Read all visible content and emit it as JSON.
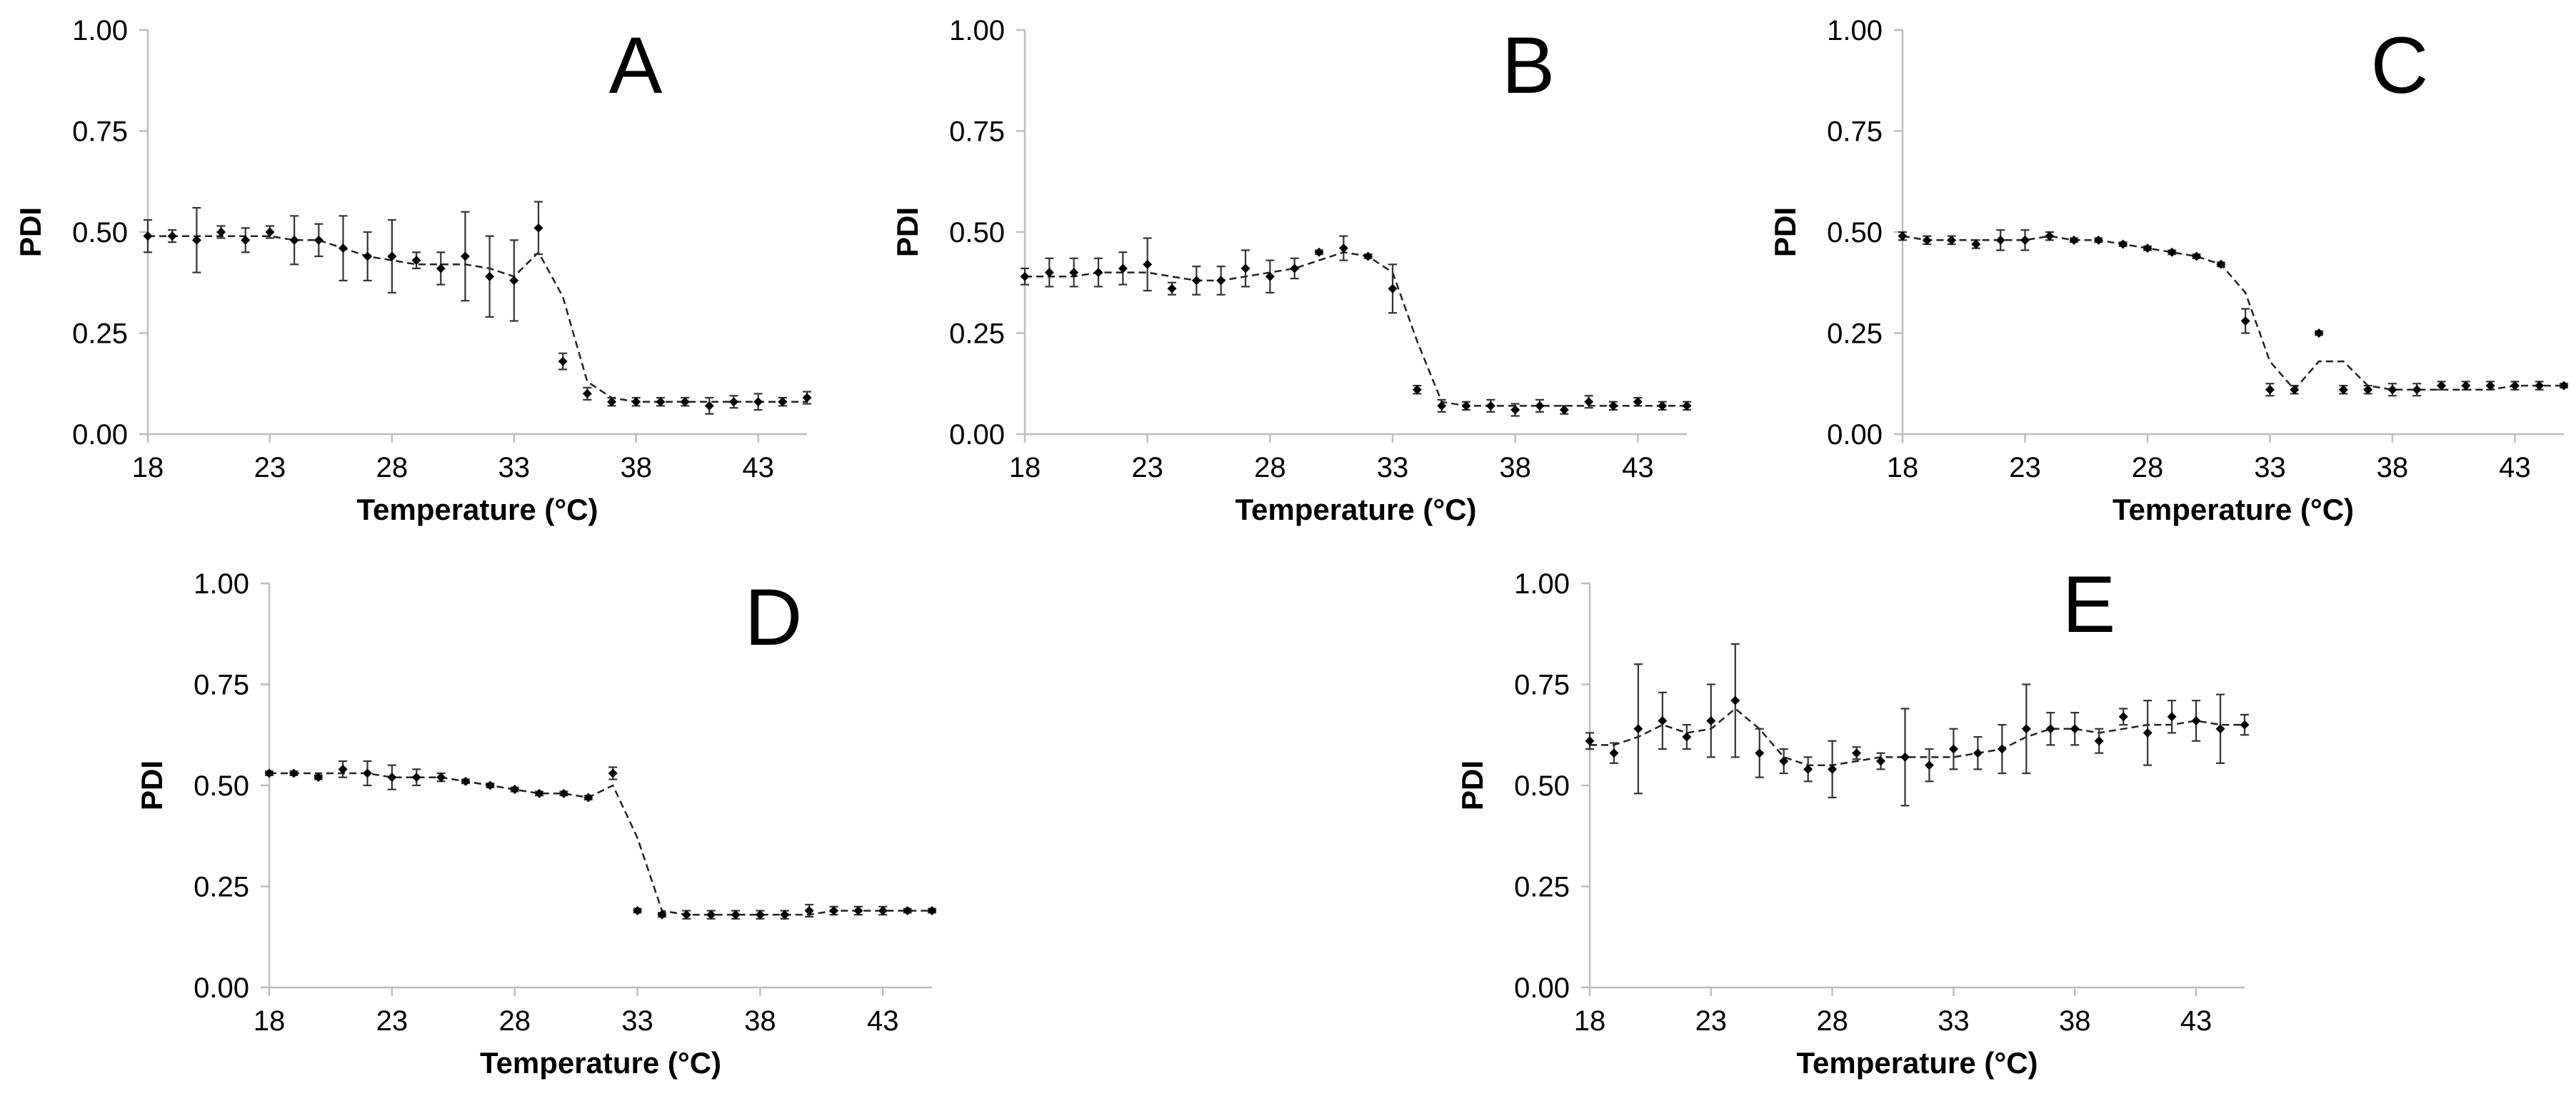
{
  "figure": {
    "description_labels": [
      "A",
      "B",
      "C",
      "D",
      "E"
    ]
  },
  "chart_data": [
    {
      "id": "A",
      "type": "scatter",
      "title": "A",
      "xlabel": "Temperature (°C)",
      "ylabel": "PDI",
      "xlim": [
        18,
        45
      ],
      "ylim": [
        0,
        1
      ],
      "xticks": [
        "18",
        "23",
        "28",
        "33",
        "38",
        "43"
      ],
      "yticks": [
        "0.00",
        "0.25",
        "0.50",
        "0.75",
        "1.00"
      ],
      "x": [
        18,
        19,
        20,
        21,
        22,
        23,
        24,
        25,
        26,
        27,
        28,
        29,
        30,
        31,
        32,
        33,
        34,
        35,
        36,
        37,
        38,
        39,
        40,
        41,
        42,
        43,
        44,
        45
      ],
      "y": [
        0.49,
        0.49,
        0.48,
        0.5,
        0.48,
        0.5,
        0.48,
        0.48,
        0.46,
        0.44,
        0.44,
        0.43,
        0.41,
        0.44,
        0.39,
        0.38,
        0.51,
        0.18,
        0.1,
        0.08,
        0.08,
        0.08,
        0.08,
        0.07,
        0.08,
        0.08,
        0.08,
        0.09
      ],
      "err": [
        0.04,
        0.015,
        0.08,
        0.015,
        0.03,
        0.015,
        0.06,
        0.04,
        0.08,
        0.06,
        0.09,
        0.02,
        0.04,
        0.11,
        0.1,
        0.1,
        0.065,
        0.02,
        0.015,
        0.01,
        0.01,
        0.01,
        0.01,
        0.02,
        0.015,
        0.02,
        0.01,
        0.015
      ],
      "trend": [
        0.49,
        0.49,
        0.49,
        0.49,
        0.49,
        0.49,
        0.48,
        0.48,
        0.46,
        0.44,
        0.43,
        0.42,
        0.42,
        0.42,
        0.41,
        0.39,
        0.45,
        0.34,
        0.13,
        0.09,
        0.08,
        0.08,
        0.08,
        0.08,
        0.08,
        0.08,
        0.08,
        0.08
      ]
    },
    {
      "id": "B",
      "type": "scatter",
      "title": "B",
      "xlabel": "Temperature (°C)",
      "ylabel": "PDI",
      "xlim": [
        18,
        45
      ],
      "ylim": [
        0,
        1
      ],
      "xticks": [
        "18",
        "23",
        "28",
        "33",
        "38",
        "43"
      ],
      "yticks": [
        "0.00",
        "0.25",
        "0.50",
        "0.75",
        "1.00"
      ],
      "x": [
        18,
        19,
        20,
        21,
        22,
        23,
        24,
        25,
        26,
        27,
        28,
        29,
        30,
        31,
        32,
        33,
        34,
        35,
        36,
        37,
        38,
        39,
        40,
        41,
        42,
        43,
        44,
        45
      ],
      "y": [
        0.39,
        0.4,
        0.4,
        0.4,
        0.41,
        0.42,
        0.36,
        0.38,
        0.38,
        0.41,
        0.39,
        0.41,
        0.45,
        0.46,
        0.44,
        0.36,
        0.11,
        0.07,
        0.07,
        0.07,
        0.06,
        0.07,
        0.06,
        0.08,
        0.07,
        0.08,
        0.07,
        0.07
      ],
      "err": [
        0.02,
        0.035,
        0.035,
        0.035,
        0.04,
        0.065,
        0.015,
        0.035,
        0.035,
        0.045,
        0.04,
        0.025,
        0.005,
        0.03,
        0.005,
        0.06,
        0.01,
        0.015,
        0.01,
        0.015,
        0.015,
        0.015,
        0.01,
        0.015,
        0.01,
        0.01,
        0.01,
        0.01
      ],
      "trend": [
        0.39,
        0.39,
        0.39,
        0.4,
        0.4,
        0.4,
        0.39,
        0.38,
        0.38,
        0.39,
        0.4,
        0.41,
        0.43,
        0.45,
        0.44,
        0.4,
        0.23,
        0.08,
        0.07,
        0.07,
        0.07,
        0.07,
        0.07,
        0.07,
        0.07,
        0.07,
        0.07,
        0.07
      ]
    },
    {
      "id": "C",
      "type": "scatter",
      "title": "C",
      "xlabel": "Temperature (°C)",
      "ylabel": "PDI",
      "xlim": [
        18,
        45
      ],
      "ylim": [
        0,
        1
      ],
      "xticks": [
        "18",
        "23",
        "28",
        "33",
        "38",
        "43"
      ],
      "yticks": [
        "0.00",
        "0.25",
        "0.50",
        "0.75",
        "1.00"
      ],
      "x": [
        18,
        19,
        20,
        21,
        22,
        23,
        24,
        25,
        26,
        27,
        28,
        29,
        30,
        31,
        32,
        33,
        34,
        35,
        36,
        37,
        38,
        39,
        40,
        41,
        42,
        43,
        44,
        45
      ],
      "y": [
        0.49,
        0.48,
        0.48,
        0.47,
        0.48,
        0.48,
        0.49,
        0.48,
        0.48,
        0.47,
        0.46,
        0.45,
        0.44,
        0.42,
        0.28,
        0.11,
        0.11,
        0.25,
        0.11,
        0.11,
        0.11,
        0.11,
        0.12,
        0.12,
        0.12,
        0.12,
        0.12,
        0.12
      ],
      "err": [
        0.01,
        0.01,
        0.01,
        0.01,
        0.025,
        0.025,
        0.01,
        0.005,
        0.005,
        0.005,
        0.005,
        0.005,
        0.005,
        0.005,
        0.03,
        0.015,
        0.01,
        0.005,
        0.01,
        0.01,
        0.015,
        0.015,
        0.01,
        0.01,
        0.01,
        0.01,
        0.01,
        0.005
      ],
      "trend": [
        0.49,
        0.48,
        0.48,
        0.48,
        0.48,
        0.48,
        0.49,
        0.48,
        0.48,
        0.47,
        0.46,
        0.45,
        0.44,
        0.42,
        0.35,
        0.18,
        0.11,
        0.18,
        0.18,
        0.12,
        0.11,
        0.11,
        0.11,
        0.11,
        0.11,
        0.12,
        0.12,
        0.12
      ]
    },
    {
      "id": "D",
      "type": "scatter",
      "title": "D",
      "xlabel": "Temperature (°C)",
      "ylabel": "PDI",
      "xlim": [
        18,
        45
      ],
      "ylim": [
        0,
        1
      ],
      "xticks": [
        "18",
        "23",
        "28",
        "33",
        "38",
        "43"
      ],
      "yticks": [
        "0.00",
        "0.25",
        "0.50",
        "0.75",
        "1.00"
      ],
      "x": [
        18,
        19,
        20,
        21,
        22,
        23,
        24,
        25,
        26,
        27,
        28,
        29,
        30,
        31,
        32,
        33,
        34,
        35,
        36,
        37,
        38,
        39,
        40,
        41,
        42,
        43,
        44,
        45
      ],
      "y": [
        0.53,
        0.53,
        0.52,
        0.54,
        0.53,
        0.52,
        0.52,
        0.52,
        0.51,
        0.5,
        0.49,
        0.48,
        0.48,
        0.47,
        0.53,
        0.19,
        0.18,
        0.18,
        0.18,
        0.18,
        0.18,
        0.18,
        0.19,
        0.19,
        0.19,
        0.19,
        0.19,
        0.19
      ],
      "err": [
        0.005,
        0.005,
        0.005,
        0.02,
        0.03,
        0.03,
        0.02,
        0.01,
        0.005,
        0.005,
        0.005,
        0.005,
        0.005,
        0.005,
        0.015,
        0.005,
        0.005,
        0.01,
        0.01,
        0.01,
        0.01,
        0.01,
        0.015,
        0.01,
        0.01,
        0.01,
        0.005,
        0.005
      ],
      "trend": [
        0.53,
        0.53,
        0.53,
        0.53,
        0.53,
        0.52,
        0.52,
        0.52,
        0.51,
        0.5,
        0.49,
        0.48,
        0.48,
        0.47,
        0.5,
        0.37,
        0.19,
        0.18,
        0.18,
        0.18,
        0.18,
        0.18,
        0.18,
        0.19,
        0.19,
        0.19,
        0.19,
        0.19
      ]
    },
    {
      "id": "E",
      "type": "scatter",
      "title": "E",
      "xlabel": "Temperature (°C)",
      "ylabel": "PDI",
      "xlim": [
        18,
        45
      ],
      "ylim": [
        0,
        1
      ],
      "xticks": [
        "18",
        "23",
        "28",
        "33",
        "38",
        "43"
      ],
      "yticks": [
        "0.00",
        "0.25",
        "0.50",
        "0.75",
        "1.00"
      ],
      "x": [
        18,
        19,
        20,
        21,
        22,
        23,
        24,
        25,
        26,
        27,
        28,
        29,
        30,
        31,
        32,
        33,
        34,
        35,
        36,
        37,
        38,
        39,
        40,
        41,
        42,
        43,
        44,
        45
      ],
      "y": [
        0.61,
        0.58,
        0.64,
        0.66,
        0.62,
        0.66,
        0.71,
        0.58,
        0.56,
        0.54,
        0.54,
        0.58,
        0.56,
        0.57,
        0.55,
        0.59,
        0.58,
        0.59,
        0.64,
        0.64,
        0.64,
        0.61,
        0.67,
        0.63,
        0.67,
        0.66,
        0.64,
        0.65
      ],
      "err": [
        0.02,
        0.025,
        0.16,
        0.07,
        0.03,
        0.09,
        0.14,
        0.06,
        0.03,
        0.03,
        0.07,
        0.015,
        0.02,
        0.12,
        0.04,
        0.05,
        0.04,
        0.06,
        0.11,
        0.04,
        0.04,
        0.03,
        0.02,
        0.08,
        0.04,
        0.05,
        0.085,
        0.025
      ],
      "trend": [
        0.6,
        0.6,
        0.62,
        0.65,
        0.63,
        0.64,
        0.69,
        0.64,
        0.57,
        0.55,
        0.55,
        0.56,
        0.57,
        0.57,
        0.57,
        0.57,
        0.58,
        0.59,
        0.62,
        0.64,
        0.64,
        0.63,
        0.64,
        0.65,
        0.65,
        0.66,
        0.65,
        0.65
      ]
    }
  ]
}
